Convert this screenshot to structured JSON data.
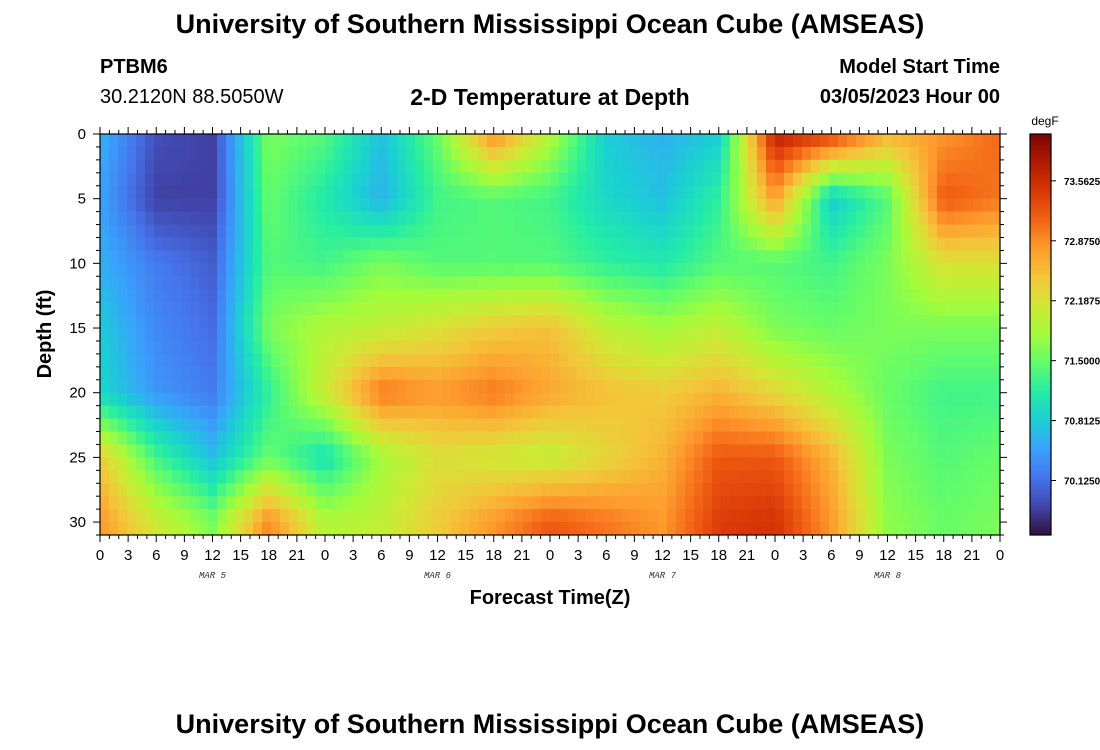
{
  "header": {
    "title": "University of Southern Mississippi Ocean Cube (AMSEAS)",
    "station_id": "PTBM6",
    "station_coords": "30.2120N  88.5050W",
    "plot_title": "2-D Temperature at Depth",
    "start_label": "Model Start Time",
    "start_value": "03/05/2023 Hour 00"
  },
  "footer": {
    "title": "University of Southern Mississippi Ocean Cube (AMSEAS)"
  },
  "chart_data": {
    "type": "heatmap",
    "title": "2-D Temperature at Depth",
    "xlabel": "Forecast Time(Z)",
    "ylabel": "Depth (ft)",
    "x_tick_labels": [
      "0",
      "3",
      "6",
      "9",
      "12",
      "15",
      "18",
      "21",
      "0",
      "3",
      "6",
      "9",
      "12",
      "15",
      "18",
      "21",
      "0",
      "3",
      "6",
      "9",
      "12",
      "15",
      "18",
      "21",
      "0",
      "3",
      "6",
      "9",
      "12",
      "15",
      "18",
      "21",
      "0"
    ],
    "x_hours_range": [
      0,
      96
    ],
    "date_labels": [
      {
        "label": "MAR 5",
        "hour": 12
      },
      {
        "label": "MAR 6",
        "hour": 36
      },
      {
        "label": "MAR 7",
        "hour": 60
      },
      {
        "label": "MAR 8",
        "hour": 84
      }
    ],
    "y_ticks": [
      "0",
      "5",
      "10",
      "15",
      "20",
      "25",
      "30"
    ],
    "y_range_ft": [
      0,
      31
    ],
    "y_inverted": true,
    "colorbar": {
      "unit": "degF",
      "tick_labels": [
        "73.5625",
        "72.8750",
        "72.1875",
        "71.5000",
        "70.8125",
        "70.1250"
      ],
      "range": [
        69.5,
        74.1
      ],
      "colormap": [
        "#30123b",
        "#4145ab",
        "#4675ed",
        "#39a2fc",
        "#1bcfd4",
        "#24eca6",
        "#61fc6c",
        "#a4fc3b",
        "#d1e834",
        "#f3c63a",
        "#fe9b2d",
        "#f36315",
        "#d93806",
        "#b11901",
        "#7a0402"
      ]
    },
    "x_hours": [
      0,
      6,
      12,
      18,
      24,
      30,
      36,
      42,
      48,
      54,
      60,
      66,
      72,
      78,
      84,
      90,
      96
    ],
    "depths_ft": [
      0,
      5,
      10,
      15,
      20,
      25,
      30
    ],
    "temperature_degF": [
      [
        70.6,
        69.9,
        69.8,
        71.6,
        71.4,
        70.7,
        71.5,
        72.9,
        71.9,
        70.8,
        70.6,
        70.8,
        73.7,
        73.4,
        72.6,
        72.8,
        73.1
      ],
      [
        70.5,
        69.8,
        69.8,
        71.5,
        71.1,
        70.6,
        71.3,
        71.4,
        71.3,
        70.9,
        70.7,
        71.2,
        72.8,
        70.8,
        71.4,
        73.2,
        73.0
      ],
      [
        70.6,
        70.2,
        70.0,
        71.4,
        71.3,
        71.6,
        71.4,
        71.4,
        71.4,
        71.2,
        71.1,
        71.4,
        71.4,
        71.3,
        71.6,
        72.2,
        72.2
      ],
      [
        70.8,
        70.3,
        70.1,
        71.6,
        71.9,
        72.0,
        72.2,
        72.4,
        72.5,
        72.0,
        71.8,
        72.0,
        71.6,
        71.5,
        71.6,
        71.6,
        71.6
      ],
      [
        70.9,
        70.4,
        70.2,
        71.2,
        72.1,
        73.0,
        72.8,
        73.0,
        72.7,
        72.5,
        72.4,
        72.6,
        72.3,
        71.9,
        71.5,
        71.3,
        71.3
      ],
      [
        72.4,
        71.3,
        70.7,
        71.5,
        71.0,
        71.8,
        72.2,
        72.1,
        72.0,
        72.3,
        72.6,
        73.2,
        73.2,
        72.6,
        71.6,
        71.4,
        71.5
      ],
      [
        72.8,
        72.1,
        71.6,
        72.9,
        71.9,
        72.0,
        72.4,
        72.8,
        73.2,
        73.0,
        72.8,
        73.4,
        73.5,
        72.8,
        71.7,
        71.5,
        71.6
      ]
    ]
  }
}
